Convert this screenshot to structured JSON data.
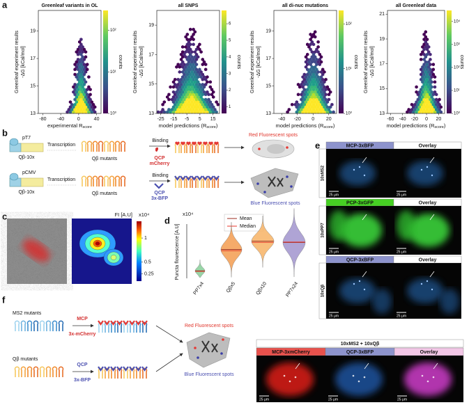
{
  "panel_labels": [
    "a",
    "b",
    "c",
    "d",
    "e",
    "f"
  ],
  "a": {
    "plots": [
      {
        "title": "Greenleaf variants in OL",
        "r": "r = 0.23",
        "ylabel": [
          "Greenleaf experiment results",
          "-ΔG [kCal/mol]"
        ],
        "xlabel": [
          "experimental R",
          "score"
        ],
        "xlim": [
          -90,
          50
        ],
        "xticks": [
          -80,
          -40,
          0,
          40
        ],
        "ylim": [
          13,
          20.5
        ],
        "yticks": [
          13,
          15,
          17,
          19
        ],
        "cbar": {
          "log": true,
          "lim": [
            1,
            300
          ],
          "ticks": [
            {
              "value": 1,
              "label": "10⁰"
            },
            {
              "value": 10,
              "label": "10¹"
            },
            {
              "value": 100,
              "label": "10²"
            }
          ],
          "label": "counts"
        }
      },
      {
        "title": "all SNPS",
        "r": "r = 0.44",
        "ylabel": [
          "Greenleaf experiment results",
          "-ΔG [kCal/mol]"
        ],
        "xlabel": [
          "model predictions (R",
          "score",
          ")"
        ],
        "xlim": [
          -28,
          20
        ],
        "xticks": [
          -25,
          -15,
          -5,
          5,
          15
        ],
        "ylim": [
          13,
          20
        ],
        "yticks": [
          13,
          15,
          17,
          19
        ],
        "cbar": {
          "log": false,
          "lim": [
            0.6,
            6.8
          ],
          "ticks": [
            1,
            2,
            3,
            4,
            5,
            6
          ],
          "label": "counts"
        }
      },
      {
        "title": "all di-nuc mutations",
        "r": "r = 0.40",
        "ylabel": [
          "Greenleaf experiment results",
          "-ΔG [kCal/mol]"
        ],
        "xlabel": [
          "model predictions (R",
          "score",
          ")"
        ],
        "xlim": [
          -50,
          30
        ],
        "xticks": [
          -40,
          -20,
          0,
          20
        ],
        "ylim": [
          13,
          20.5
        ],
        "yticks": [
          13,
          15,
          17,
          19
        ],
        "cbar": {
          "log": true,
          "lim": [
            1,
            200
          ],
          "ticks": [
            {
              "value": 1,
              "label": "10⁰"
            },
            {
              "value": 10,
              "label": "10¹"
            },
            {
              "value": 100,
              "label": "10²"
            }
          ],
          "label": "counts"
        }
      },
      {
        "title": "all Greenleaf data",
        "r": "r = 0.17",
        "ylabel": [
          "Greenleaf experiment results",
          "-ΔG [kCal/mol]"
        ],
        "xlabel": [
          "model predictions (R",
          "score",
          ")"
        ],
        "xlim": [
          -65,
          30
        ],
        "xticks": [
          -60,
          -40,
          -20,
          0,
          20
        ],
        "ylim": [
          13,
          21.3
        ],
        "yticks": [
          13,
          15,
          17,
          19,
          21
        ],
        "cbar": {
          "log": true,
          "lim": [
            1,
            30000
          ],
          "ticks": [
            {
              "value": 1,
              "label": "10⁰"
            },
            {
              "value": 10,
              "label": "10¹"
            },
            {
              "value": 100,
              "label": "10²"
            },
            {
              "value": 1000,
              "label": "10³"
            },
            {
              "value": 10000,
              "label": "10⁴"
            }
          ],
          "label": "counts"
        }
      }
    ]
  },
  "b": {
    "rows": [
      {
        "promoter": "pT7",
        "construct": "Qβ-10x",
        "step": "Transcription",
        "rna": "Qβ mutants",
        "binding": "Binding",
        "protein": "QCP",
        "tag": "mCherry",
        "result": "Red Fluorescent spots"
      },
      {
        "promoter": "pCMV",
        "construct": "Qβ-10x",
        "step": "Transcription",
        "rna": "Qβ mutants",
        "binding": "Binding",
        "protein": "QCP",
        "tag": "3x-BFP",
        "result": "Blue Fluorescent spots"
      }
    ]
  },
  "c": {
    "cbar_title": "FI [A.U]",
    "cbar_unit": "x10⁴",
    "cbar_lim": [
      0.1,
      1.35
    ],
    "cbar_ticks": [
      1,
      0.5,
      0.25
    ]
  },
  "d": {
    "unit": "x10⁴",
    "ylabel": "Puncta flourescence [A.U]",
    "legend": [
      {
        "name": "Mean",
        "color": "#9b2b1f"
      },
      {
        "name": "Median",
        "color": "#e8352b"
      }
    ],
    "categories": [
      "PP7x4",
      "Qβx5",
      "Qβx10",
      "PP7x24"
    ],
    "colors": [
      "#8fd19e",
      "#f4a25a",
      "#f8b86e",
      "#a79bd1"
    ],
    "means": [
      0.36,
      1.38,
      1.78,
      1.72
    ],
    "medians": [
      0.33,
      1.32,
      1.72,
      1.74
    ],
    "ylim": [
      0,
      2.6
    ]
  },
  "e": {
    "rows": [
      {
        "label": "10xMS2",
        "channel": "MCP-3xBFP",
        "overlay": "Overlay",
        "scale": [
          "25 μm",
          "25 μm"
        ]
      },
      {
        "label": "10xPP7",
        "channel": "PCP-3xGFP",
        "overlay": "Overlay",
        "scale": [
          "25 μm",
          "25 μm"
        ]
      },
      {
        "label": "10xQβ",
        "channel": "QCP-3xBFP",
        "overlay": "Overlay",
        "scale": [
          "25 μm",
          "25 μm"
        ]
      }
    ]
  },
  "f": {
    "rows": [
      {
        "rna": "MS2 mutants",
        "protein": "MCP",
        "tag": "3x-mCherry"
      },
      {
        "rna": "Qβ mutants",
        "protein": "QCP",
        "tag": "3x-BFP"
      }
    ],
    "results": [
      "Red Fluorescent spots",
      "Blue Fluorescent spots"
    ],
    "title": "10xMS2 + 10xQβ",
    "channels": [
      "MCP-3xmCherry",
      "QCP-3xBFP",
      "Overlay"
    ],
    "scale": [
      "25 μm",
      "25 μm",
      "25 μm"
    ]
  }
}
